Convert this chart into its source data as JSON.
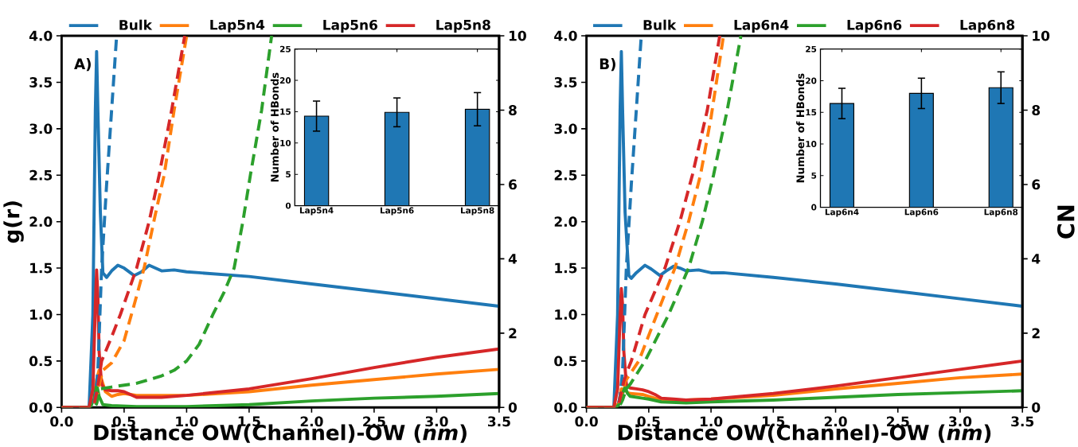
{
  "chart_data": [
    {
      "type": "line",
      "xlabel": "Distance OW(Channel)-OW (*nm*)",
      "ylabel": "g(r)",
      "annotations": [
        "A)"
      ],
      "legend": "top",
      "xlim": [
        0,
        3.5
      ],
      "xticks": [
        {
          "value": 0,
          "label": "0.0"
        },
        0.5,
        {
          "value": 1,
          "label": "1.0"
        },
        1.5,
        {
          "value": 2,
          "label": "2.0"
        },
        2.5,
        {
          "value": 3,
          "label": "3.0"
        },
        3.5
      ],
      "ylim": [
        0,
        4
      ],
      "yticks": [
        {
          "value": 0,
          "label": "0.0"
        },
        0.5,
        {
          "value": 1,
          "label": "1.0"
        },
        1.5,
        {
          "value": 2,
          "label": "2.0"
        },
        2.5,
        {
          "value": 3,
          "label": "3.0"
        },
        3.5,
        {
          "value": 4,
          "label": "4.0"
        }
      ],
      "y2lim": [
        0,
        10
      ],
      "y2ticks": [
        0,
        2,
        4,
        6,
        8,
        10
      ],
      "series": [
        {
          "name": "Bulk",
          "color": "#1f77b4",
          "line_style": "solid",
          "x": [
            0,
            0.22,
            0.25,
            0.27,
            0.28,
            0.29,
            0.31,
            0.33,
            0.36,
            0.4,
            0.45,
            0.5,
            0.58,
            0.64,
            0.7,
            0.75,
            0.8,
            0.9,
            1.0,
            1.1,
            1.5,
            2.0,
            2.5,
            3.0,
            3.5
          ],
          "values": [
            0,
            0,
            1.0,
            3.2,
            3.83,
            3.2,
            2.1,
            1.45,
            1.4,
            1.47,
            1.53,
            1.5,
            1.42,
            1.46,
            1.53,
            1.5,
            1.47,
            1.48,
            1.46,
            1.45,
            1.41,
            1.33,
            1.25,
            1.17,
            1.09
          ]
        },
        {
          "name": "Lap5n4",
          "color": "#ff7f0e",
          "line_style": "solid",
          "x": [
            0.26,
            0.28,
            0.3,
            0.32,
            0.35,
            0.4,
            0.45,
            0.5,
            0.6,
            0.8,
            1.0,
            1.5,
            2.0,
            2.5,
            3.0,
            3.5
          ],
          "values": [
            0.1,
            0.3,
            0.4,
            0.3,
            0.17,
            0.12,
            0.14,
            0.15,
            0.13,
            0.13,
            0.13,
            0.17,
            0.24,
            0.3,
            0.36,
            0.41
          ]
        },
        {
          "name": "Lap5n6",
          "color": "#2ca02c",
          "line_style": "solid",
          "x": [
            0,
            0.23,
            0.26,
            0.28,
            0.3,
            0.33,
            0.4,
            0.6,
            0.8,
            1.0,
            1.5,
            2.0,
            2.5,
            3.0,
            3.5
          ],
          "values": [
            0,
            0,
            0.1,
            0.25,
            0.12,
            0.03,
            0.02,
            0.01,
            0.01,
            0.01,
            0.03,
            0.07,
            0.1,
            0.12,
            0.15
          ]
        },
        {
          "name": "Lap5n8",
          "color": "#d62728",
          "line_style": "solid",
          "x": [
            0,
            0.22,
            0.25,
            0.27,
            0.28,
            0.29,
            0.3,
            0.32,
            0.35,
            0.4,
            0.45,
            0.5,
            0.55,
            0.6,
            0.7,
            0.8,
            1.0,
            1.5,
            2.0,
            2.5,
            3.0,
            3.5
          ],
          "values": [
            0,
            0,
            0.2,
            1.1,
            1.48,
            1.2,
            0.6,
            0.25,
            0.19,
            0.18,
            0.18,
            0.17,
            0.14,
            0.11,
            0.11,
            0.11,
            0.13,
            0.2,
            0.31,
            0.43,
            0.54,
            0.63
          ]
        },
        {
          "color": "#1f77b4",
          "line_style": "dashed",
          "axis": "y2",
          "x": [
            0,
            0.25,
            0.27,
            0.29,
            0.32,
            0.36,
            0.39,
            0.44
          ],
          "values": [
            0,
            0,
            0.3,
            1.0,
            3.75,
            6.0,
            7.5,
            10
          ]
        },
        {
          "color": "#ff7f0e",
          "line_style": "dashed",
          "axis": "y2",
          "x": [
            0,
            0.25,
            0.28,
            0.3,
            0.33,
            0.4,
            0.5,
            0.6,
            0.66,
            0.75,
            0.82,
            0.9,
            1.0
          ],
          "values": [
            0,
            0,
            0.2,
            0.6,
            1.0,
            1.2,
            1.8,
            3.0,
            3.75,
            5.2,
            6.25,
            8.0,
            10
          ]
        },
        {
          "color": "#2ca02c",
          "line_style": "dashed",
          "axis": "y2",
          "x": [
            0,
            0.26,
            0.28,
            0.31,
            0.4,
            0.6,
            0.8,
            0.9,
            1.0,
            1.1,
            1.21,
            1.3,
            1.38,
            1.45,
            1.51,
            1.6,
            1.68
          ],
          "values": [
            0,
            0,
            0.1,
            0.5,
            0.55,
            0.65,
            0.85,
            1.0,
            1.25,
            1.7,
            2.5,
            3.1,
            3.75,
            5.0,
            6.25,
            8.0,
            10
          ]
        },
        {
          "color": "#d62728",
          "line_style": "dashed",
          "axis": "y2",
          "x": [
            0,
            0.24,
            0.26,
            0.28,
            0.3,
            0.32,
            0.4,
            0.47,
            0.6,
            0.7,
            0.78,
            0.88,
            0.985
          ],
          "values": [
            0,
            0,
            0.1,
            0.4,
            0.8,
            1.25,
            1.9,
            2.5,
            3.75,
            5.0,
            6.25,
            8.0,
            10
          ]
        }
      ]
    },
    {
      "type": "bar",
      "ylabel": "Number of HBonds",
      "categories": [
        "Lap5n4",
        "Lap5n6",
        "Lap5n8"
      ],
      "values": [
        14.3,
        14.9,
        15.4
      ],
      "errors": [
        2.4,
        2.3,
        2.65
      ],
      "color": "#1f77b4",
      "ylim": [
        0,
        25
      ],
      "yticks": [
        0,
        5,
        10,
        15,
        20,
        25
      ]
    },
    {
      "type": "line",
      "xlabel": "Distance OW(Channel)-OW (*nm*)",
      "y2label": "CN",
      "annotations": [
        "B)"
      ],
      "legend": "top",
      "xlim": [
        0,
        3.5
      ],
      "xticks": [
        {
          "value": 0,
          "label": "0.0"
        },
        0.5,
        {
          "value": 1,
          "label": "1.0"
        },
        1.5,
        {
          "value": 2,
          "label": "2.0"
        },
        2.5,
        {
          "value": 3,
          "label": "3.0"
        },
        3.5
      ],
      "ylim": [
        0,
        4
      ],
      "yticks": [
        {
          "value": 0,
          "label": "0.0"
        },
        0.5,
        {
          "value": 1,
          "label": "1.0"
        },
        1.5,
        {
          "value": 2,
          "label": "2.0"
        },
        2.5,
        {
          "value": 3,
          "label": "3.0"
        },
        3.5,
        {
          "value": 4,
          "label": "4.0"
        }
      ],
      "y2lim": [
        0,
        10
      ],
      "y2ticks": [
        0,
        2,
        4,
        6,
        8,
        10
      ],
      "series": [
        {
          "name": "Bulk",
          "color": "#1f77b4",
          "line_style": "solid",
          "x": [
            0,
            0.22,
            0.25,
            0.27,
            0.28,
            0.29,
            0.31,
            0.34,
            0.36,
            0.4,
            0.47,
            0.52,
            0.59,
            0.64,
            0.7,
            0.75,
            0.8,
            0.9,
            1.0,
            1.1,
            1.5,
            2.0,
            2.5,
            3.0,
            3.5
          ],
          "values": [
            0,
            0,
            1.0,
            3.2,
            3.83,
            3.2,
            2.1,
            1.42,
            1.39,
            1.45,
            1.53,
            1.49,
            1.42,
            1.47,
            1.52,
            1.5,
            1.47,
            1.48,
            1.45,
            1.45,
            1.4,
            1.33,
            1.25,
            1.17,
            1.09
          ]
        },
        {
          "name": "Lap6n4",
          "color": "#ff7f0e",
          "line_style": "solid",
          "x": [
            0,
            0.23,
            0.26,
            0.28,
            0.3,
            0.33,
            0.35,
            0.45,
            0.5,
            0.6,
            0.8,
            1.0,
            1.5,
            2.0,
            2.5,
            3.0,
            3.5
          ],
          "values": [
            0,
            0,
            0.05,
            0.2,
            0.2,
            0.16,
            0.15,
            0.14,
            0.12,
            0.08,
            0.08,
            0.09,
            0.13,
            0.2,
            0.26,
            0.32,
            0.36
          ]
        },
        {
          "name": "Lap6n6",
          "color": "#2ca02c",
          "line_style": "solid",
          "x": [
            0,
            0.24,
            0.27,
            0.29,
            0.31,
            0.33,
            0.35,
            0.45,
            0.5,
            0.6,
            0.8,
            1.0,
            1.5,
            2.0,
            2.5,
            3.0,
            3.5
          ],
          "values": [
            0,
            0,
            0.05,
            0.15,
            0.22,
            0.15,
            0.12,
            0.1,
            0.09,
            0.06,
            0.05,
            0.06,
            0.08,
            0.11,
            0.14,
            0.16,
            0.18
          ]
        },
        {
          "name": "Lap6n8",
          "color": "#d62728",
          "line_style": "solid",
          "x": [
            0,
            0.22,
            0.25,
            0.27,
            0.28,
            0.29,
            0.3,
            0.32,
            0.35,
            0.4,
            0.45,
            0.5,
            0.55,
            0.6,
            0.7,
            0.8,
            1.0,
            1.5,
            2.0,
            2.5,
            3.0,
            3.5
          ],
          "values": [
            0,
            0,
            0.2,
            1.0,
            1.28,
            1.1,
            0.6,
            0.25,
            0.21,
            0.2,
            0.19,
            0.17,
            0.14,
            0.1,
            0.09,
            0.08,
            0.09,
            0.15,
            0.23,
            0.32,
            0.41,
            0.5
          ]
        },
        {
          "color": "#1f77b4",
          "line_style": "dashed",
          "axis": "y2",
          "x": [
            0,
            0.25,
            0.27,
            0.29,
            0.32,
            0.36,
            0.39,
            0.44
          ],
          "values": [
            0,
            0,
            0.3,
            1.0,
            3.75,
            6.0,
            7.5,
            10
          ]
        },
        {
          "color": "#ff7f0e",
          "line_style": "dashed",
          "axis": "y2",
          "x": [
            0,
            0.25,
            0.28,
            0.31,
            0.35,
            0.42,
            0.565,
            0.71,
            0.82,
            0.915,
            1.0,
            1.1
          ],
          "values": [
            0,
            0,
            0.3,
            0.7,
            0.9,
            1.25,
            2.5,
            3.75,
            5.0,
            6.25,
            7.8,
            10
          ]
        },
        {
          "color": "#2ca02c",
          "line_style": "dashed",
          "axis": "y2",
          "x": [
            0,
            0.26,
            0.29,
            0.32,
            0.35,
            0.47,
            0.66,
            0.82,
            0.93,
            1.02,
            1.13,
            1.24
          ],
          "values": [
            0,
            0,
            0.2,
            0.5,
            0.62,
            1.25,
            2.5,
            3.75,
            5.0,
            6.25,
            8.0,
            10
          ]
        },
        {
          "color": "#d62728",
          "line_style": "dashed",
          "axis": "y2",
          "x": [
            0,
            0.24,
            0.26,
            0.28,
            0.3,
            0.33,
            0.36,
            0.47,
            0.63,
            0.75,
            0.85,
            0.97,
            1.07
          ],
          "values": [
            0,
            0,
            0.1,
            0.4,
            0.7,
            1.0,
            1.25,
            2.5,
            3.75,
            5.0,
            6.25,
            8.0,
            10
          ]
        }
      ]
    },
    {
      "type": "bar",
      "ylabel": "Number of HBonds",
      "categories": [
        "Lap6n4",
        "Lap6n6",
        "Lap6n8"
      ],
      "values": [
        16.4,
        18.0,
        18.9
      ],
      "errors": [
        2.4,
        2.4,
        2.5
      ],
      "color": "#1f77b4",
      "ylim": [
        0,
        25
      ],
      "yticks": [
        0,
        5,
        10,
        15,
        20,
        25
      ]
    }
  ]
}
